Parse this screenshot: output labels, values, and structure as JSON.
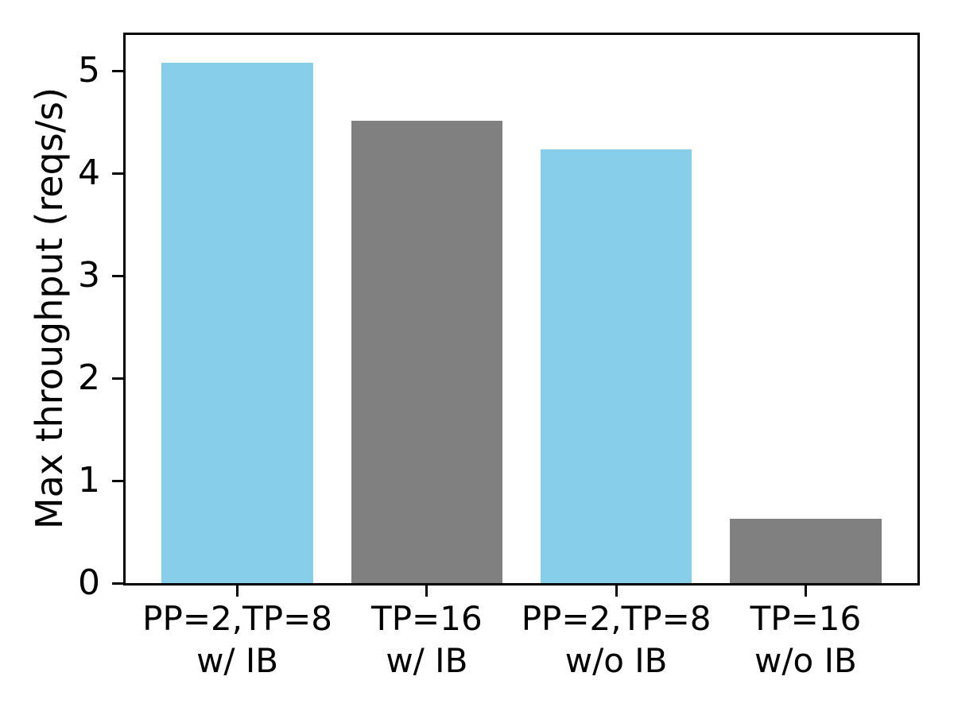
{
  "chart_data": {
    "type": "bar",
    "title": "",
    "xlabel": "",
    "ylabel": "Max throughput (reqs/s)",
    "categories": [
      "PP=2,TP=8\nw/ IB",
      "TP=16\nw/ IB",
      "PP=2,TP=8\nw/o IB",
      "TP=16\nw/o IB"
    ],
    "values": [
      5.08,
      4.51,
      4.23,
      0.63
    ],
    "bar_colors": [
      "#87CEEB",
      "#808080",
      "#87CEEB",
      "#808080"
    ],
    "bar_color_names": [
      "skyblue",
      "gray",
      "skyblue",
      "gray"
    ],
    "yticks": [
      0,
      1,
      2,
      3,
      4,
      5
    ],
    "ylim": [
      0,
      5.35
    ],
    "xlim": [
      -0.59,
      3.59
    ],
    "bar_width": 0.8,
    "grid": false,
    "legend_position": "none",
    "axis_color": "#000000",
    "background_color": "#FFFFFF"
  }
}
